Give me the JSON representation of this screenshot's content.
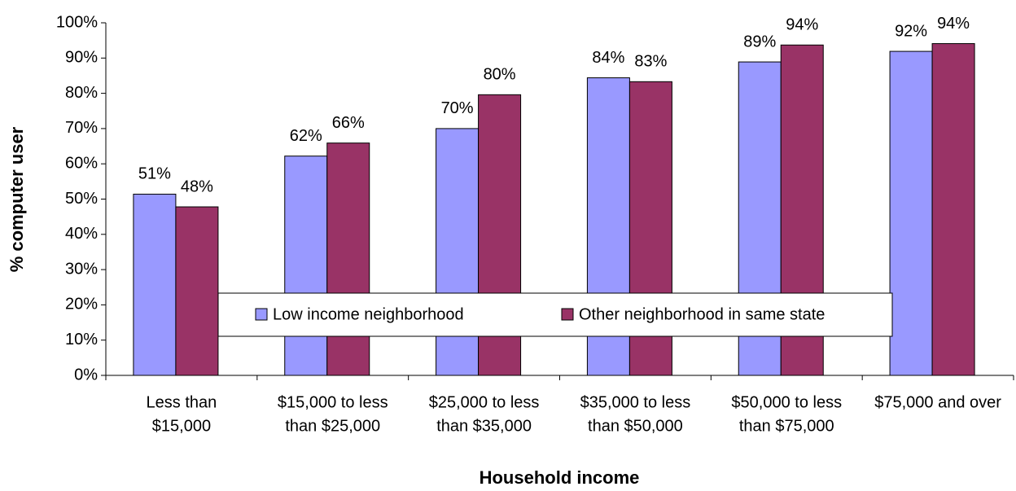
{
  "chart_data": {
    "type": "bar",
    "x_label": "Household income",
    "y_label": "% computer user",
    "categories": [
      [
        "Less than",
        "$15,000"
      ],
      [
        "$15,000 to less",
        "than $25,000"
      ],
      [
        "$25,000 to less",
        "than $35,000"
      ],
      [
        "$35,000 to less",
        "than $50,000"
      ],
      [
        "$50,000 to less",
        "than $75,000"
      ],
      [
        "$75,000 and over"
      ]
    ],
    "series": [
      {
        "name": "Low income neighborhood",
        "color": "#9999ff",
        "values": [
          51.4,
          62.2,
          70,
          84.4,
          88.9,
          91.9
        ],
        "value_labels": [
          "51%",
          "62%",
          "70%",
          "84%",
          "89%",
          "92%"
        ]
      },
      {
        "name": "Other neighborhood in same state",
        "color": "#993366",
        "values": [
          47.8,
          65.9,
          79.6,
          83.3,
          93.7,
          94.1
        ],
        "value_labels": [
          "48%",
          "66%",
          "80%",
          "83%",
          "94%",
          "94%"
        ]
      }
    ],
    "ylim": [
      0,
      100
    ],
    "yticks": [
      {
        "value": 0,
        "label": "0%"
      },
      {
        "value": 10,
        "label": "10%"
      },
      {
        "value": 20,
        "label": "20%"
      },
      {
        "value": 30,
        "label": "30%"
      },
      {
        "value": 40,
        "label": "40%"
      },
      {
        "value": 50,
        "label": "50%"
      },
      {
        "value": 60,
        "label": "60%"
      },
      {
        "value": 70,
        "label": "70%"
      },
      {
        "value": 80,
        "label": "80%"
      },
      {
        "value": 90,
        "label": "90%"
      },
      {
        "value": 100,
        "label": "100%"
      }
    ],
    "grid": false
  }
}
